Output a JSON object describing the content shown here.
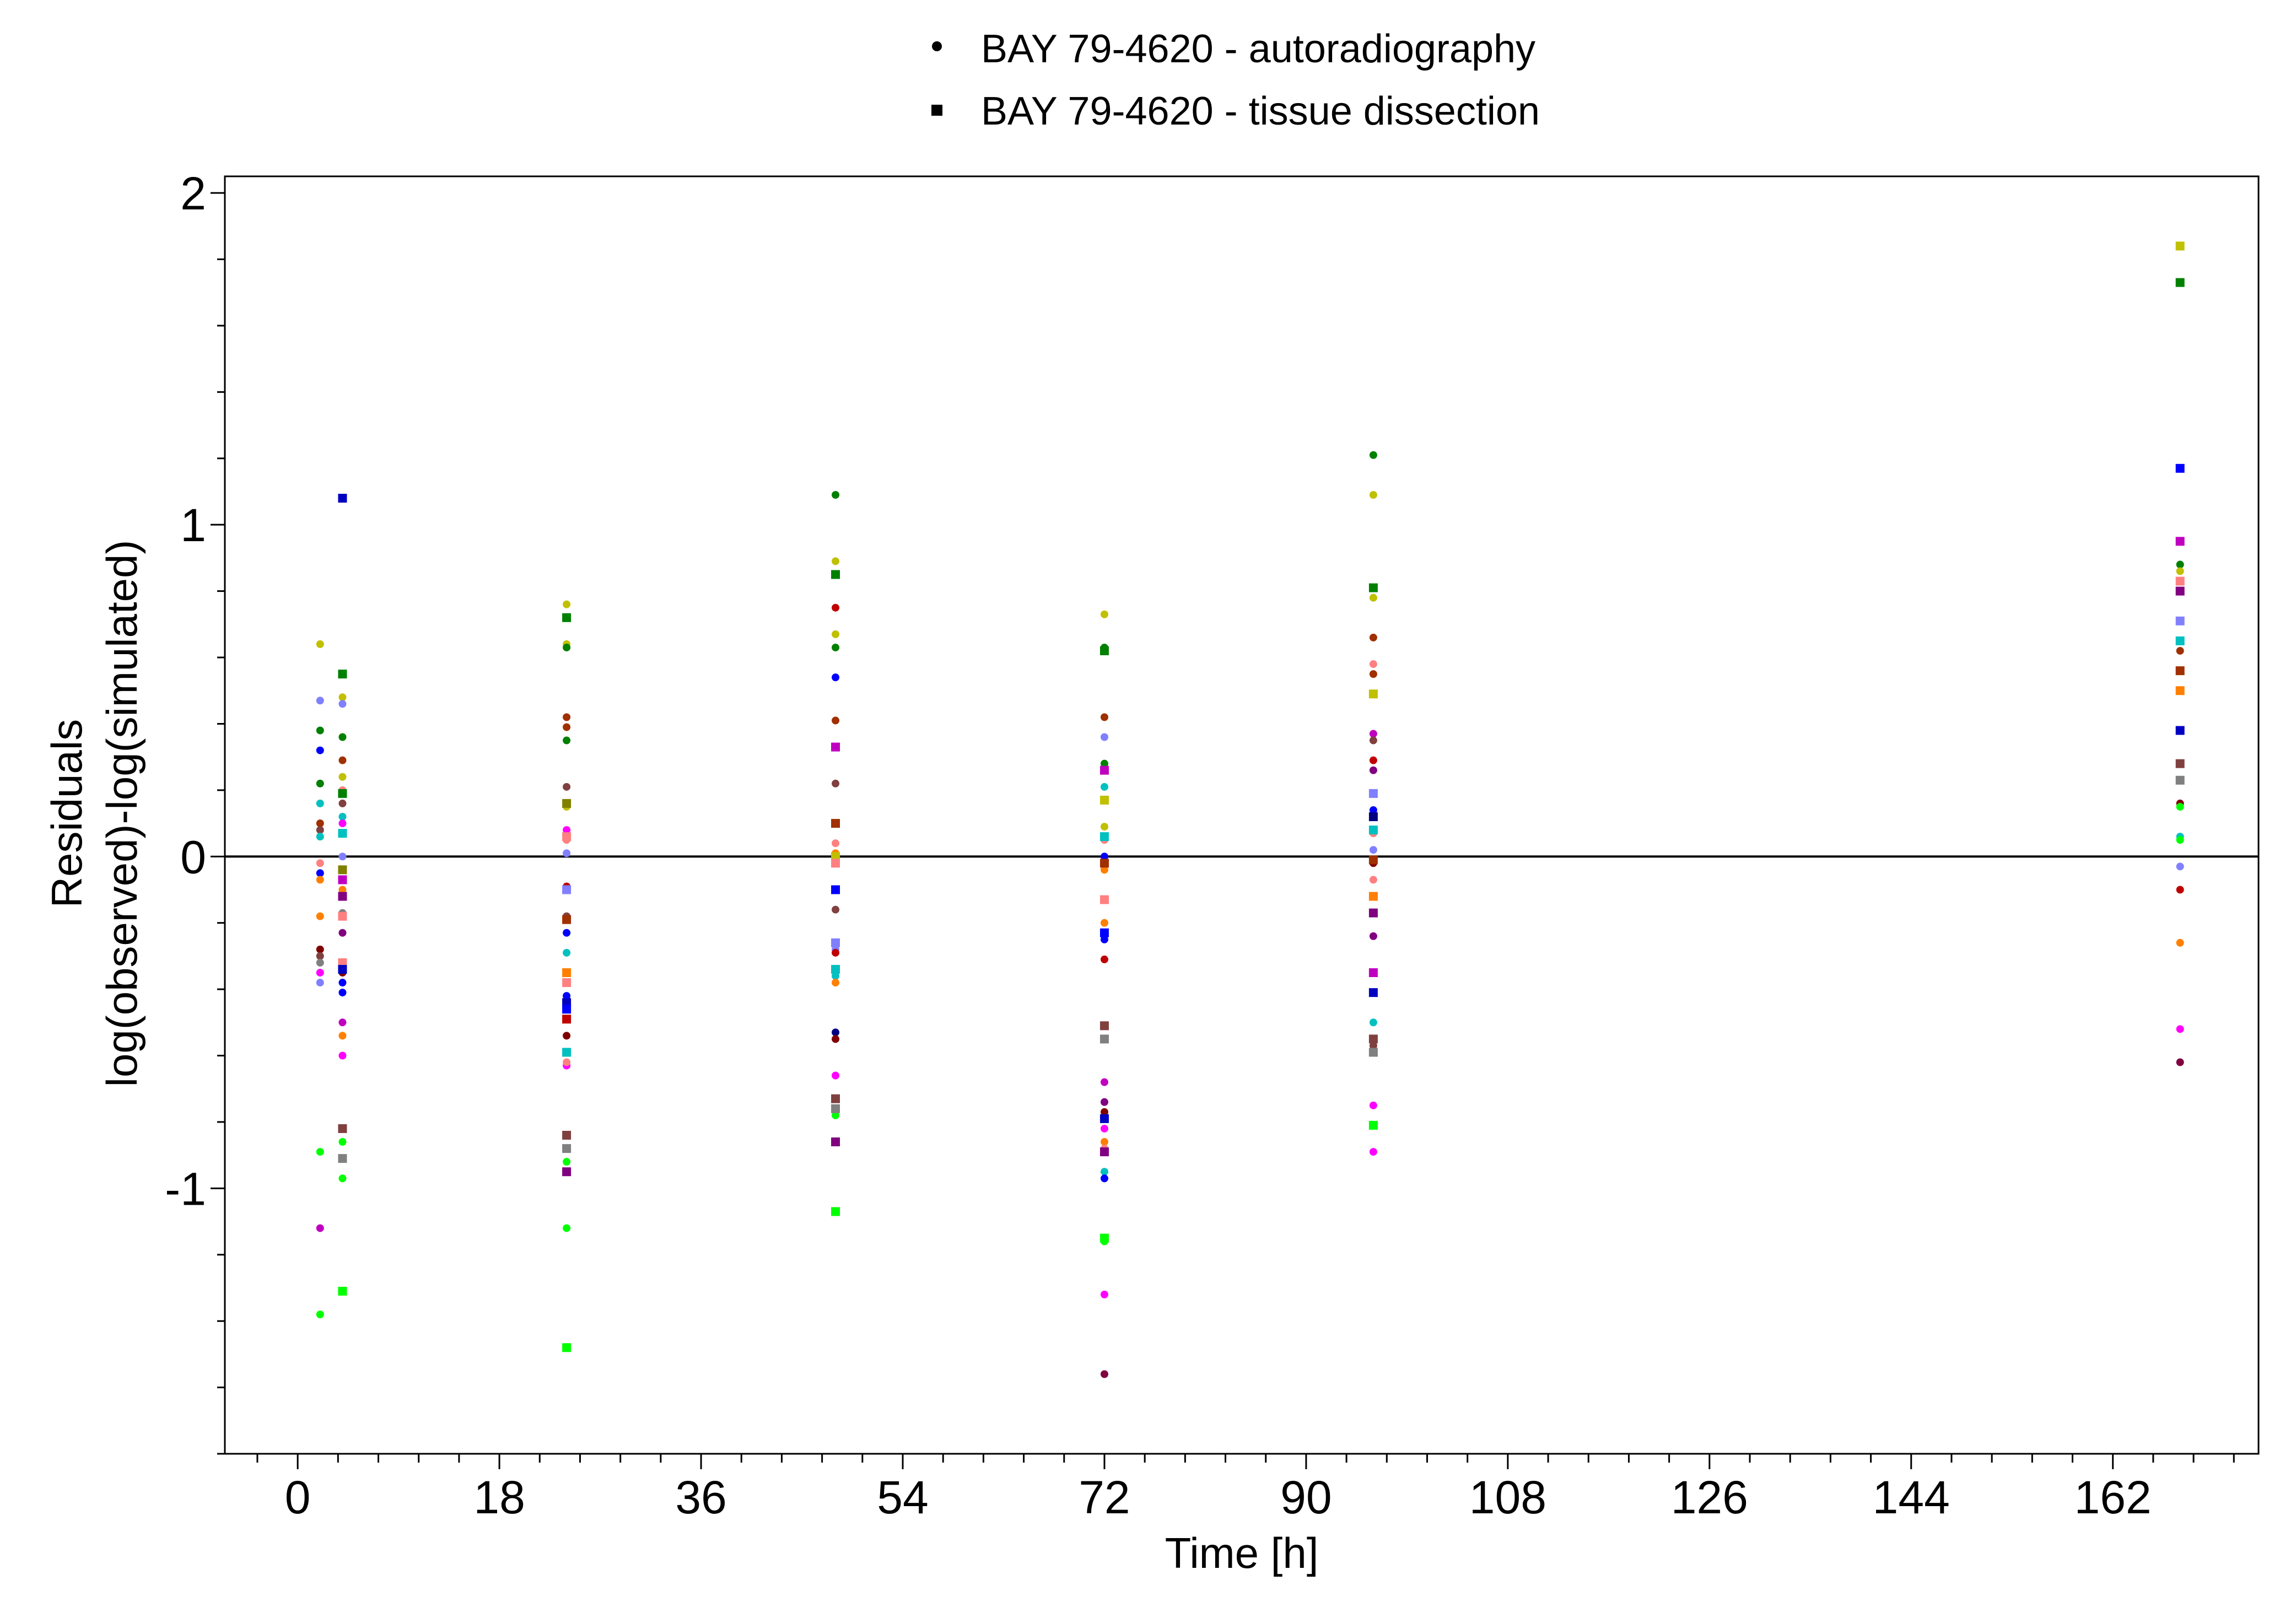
{
  "chart_data": {
    "type": "scatter",
    "title": "",
    "xlabel": "Time [h]",
    "ylabel_line1": "Residuals",
    "ylabel_line2": "log(observed)-log(simulated)",
    "xlim": [
      -6.5,
      175
    ],
    "ylim": [
      -1.8,
      2.05
    ],
    "xticks": [
      0,
      18,
      36,
      54,
      72,
      90,
      108,
      126,
      144,
      162
    ],
    "yticks": [
      -1,
      0,
      1,
      2
    ],
    "x_minor_step": 3.6,
    "y_minor_step": 0.2,
    "zero_line": 0,
    "grid": false,
    "legend_position": "top-center",
    "legend": [
      {
        "label": "BAY 79-4620 - autoradiography",
        "marker": "circle"
      },
      {
        "label": "BAY 79-4620 - tissue dissection",
        "marker": "square"
      }
    ],
    "series": [
      {
        "marker": "circle",
        "x": 2,
        "values": [
          [
            0.64,
            "#C0C000"
          ],
          [
            0.47,
            "#8080FF"
          ],
          [
            0.38,
            "#008000"
          ],
          [
            0.32,
            "#0000FF"
          ],
          [
            0.22,
            "#008000"
          ],
          [
            0.16,
            "#00C0C0"
          ],
          [
            0.1,
            "#A03000"
          ],
          [
            0.08,
            "#804040"
          ],
          [
            0.06,
            "#00C0C0"
          ],
          [
            -0.02,
            "#FF8080"
          ],
          [
            -0.05,
            "#0000FF"
          ],
          [
            -0.07,
            "#FF8000"
          ],
          [
            -0.18,
            "#FF8000"
          ],
          [
            -0.28,
            "#800000"
          ],
          [
            -0.3,
            "#804040"
          ],
          [
            -0.32,
            "#808080"
          ],
          [
            -0.35,
            "#FF00FF"
          ],
          [
            -0.38,
            "#8080FF"
          ],
          [
            -0.89,
            "#00FF00"
          ],
          [
            -1.12,
            "#C000C0"
          ],
          [
            -1.38,
            "#00FF00"
          ]
        ]
      },
      {
        "marker": "circle",
        "x": 4,
        "values": [
          [
            0.48,
            "#C0C000"
          ],
          [
            0.46,
            "#8080FF"
          ],
          [
            0.36,
            "#008000"
          ],
          [
            0.29,
            "#A03000"
          ],
          [
            0.24,
            "#C0C000"
          ],
          [
            0.2,
            "#FF8080"
          ],
          [
            0.16,
            "#804040"
          ],
          [
            0.12,
            "#00C0C0"
          ],
          [
            0.1,
            "#FF00FF"
          ],
          [
            0.0,
            "#8080FF"
          ],
          [
            -0.1,
            "#FF8000"
          ],
          [
            -0.17,
            "#808080"
          ],
          [
            -0.23,
            "#800080"
          ],
          [
            -0.35,
            "#800000"
          ],
          [
            -0.38,
            "#0000FF"
          ],
          [
            -0.41,
            "#0000FF"
          ],
          [
            -0.5,
            "#C000C0"
          ],
          [
            -0.54,
            "#FF8000"
          ],
          [
            -0.6,
            "#FF00FF"
          ],
          [
            -0.86,
            "#00FF00"
          ],
          [
            -0.97,
            "#00FF00"
          ]
        ]
      },
      {
        "marker": "square",
        "x": 4,
        "values": [
          [
            1.08,
            "#0000C0"
          ],
          [
            0.55,
            "#008000"
          ],
          [
            0.19,
            "#008000"
          ],
          [
            0.07,
            "#00C0C0"
          ],
          [
            -0.04,
            "#808000"
          ],
          [
            -0.07,
            "#C000C0"
          ],
          [
            -0.12,
            "#800080"
          ],
          [
            -0.18,
            "#FF8080"
          ],
          [
            -0.32,
            "#FF8080"
          ],
          [
            -0.34,
            "#0000C0"
          ],
          [
            -0.82,
            "#804040"
          ],
          [
            -0.91,
            "#808080"
          ],
          [
            -1.31,
            "#00FF00"
          ]
        ]
      },
      {
        "marker": "circle",
        "x": 24,
        "values": [
          [
            0.76,
            "#C0C000"
          ],
          [
            0.64,
            "#C0C000"
          ],
          [
            0.63,
            "#008000"
          ],
          [
            0.42,
            "#A03000"
          ],
          [
            0.39,
            "#A03000"
          ],
          [
            0.35,
            "#008000"
          ],
          [
            0.21,
            "#804040"
          ],
          [
            0.15,
            "#C0C000"
          ],
          [
            0.08,
            "#FF00FF"
          ],
          [
            0.05,
            "#FF8080"
          ],
          [
            0.01,
            "#8080FF"
          ],
          [
            -0.09,
            "#C00000"
          ],
          [
            -0.18,
            "#804040"
          ],
          [
            -0.23,
            "#0000FF"
          ],
          [
            -0.29,
            "#00C0C0"
          ],
          [
            -0.42,
            "#0000FF"
          ],
          [
            -0.54,
            "#800000"
          ],
          [
            -0.63,
            "#FF00FF"
          ],
          [
            -0.62,
            "#FF8080"
          ],
          [
            -0.92,
            "#00FF00"
          ],
          [
            -1.12,
            "#00FF00"
          ]
        ]
      },
      {
        "marker": "square",
        "x": 24,
        "values": [
          [
            0.72,
            "#008000"
          ],
          [
            0.16,
            "#808000"
          ],
          [
            0.06,
            "#FF8080"
          ],
          [
            -0.1,
            "#8080FF"
          ],
          [
            -0.19,
            "#A03000"
          ],
          [
            -0.35,
            "#FF8000"
          ],
          [
            -0.38,
            "#FF8080"
          ],
          [
            -0.44,
            "#0000C0"
          ],
          [
            -0.46,
            "#0000FF"
          ],
          [
            -0.49,
            "#C00000"
          ],
          [
            -0.59,
            "#00C0C0"
          ],
          [
            -0.84,
            "#804040"
          ],
          [
            -0.88,
            "#808080"
          ],
          [
            -0.95,
            "#800080"
          ],
          [
            -1.48,
            "#00FF00"
          ]
        ]
      },
      {
        "marker": "circle",
        "x": 48,
        "values": [
          [
            1.09,
            "#008000"
          ],
          [
            0.89,
            "#C0C000"
          ],
          [
            0.75,
            "#C00000"
          ],
          [
            0.67,
            "#C0C000"
          ],
          [
            0.63,
            "#008000"
          ],
          [
            0.54,
            "#0000FF"
          ],
          [
            0.41,
            "#A03000"
          ],
          [
            0.33,
            "#C000C0"
          ],
          [
            0.22,
            "#804040"
          ],
          [
            0.04,
            "#FF8080"
          ],
          [
            0.01,
            "#FF8000"
          ],
          [
            -0.16,
            "#804040"
          ],
          [
            -0.28,
            "#8080FF"
          ],
          [
            -0.29,
            "#C00000"
          ],
          [
            -0.36,
            "#00C0C0"
          ],
          [
            -0.38,
            "#FF8000"
          ],
          [
            -0.53,
            "#000080"
          ],
          [
            -0.55,
            "#800000"
          ],
          [
            -0.66,
            "#FF00FF"
          ],
          [
            -0.78,
            "#00FF00"
          ]
        ]
      },
      {
        "marker": "square",
        "x": 48,
        "values": [
          [
            0.85,
            "#008000"
          ],
          [
            0.33,
            "#C000C0"
          ],
          [
            0.1,
            "#A03000"
          ],
          [
            0.0,
            "#C0C000"
          ],
          [
            -0.02,
            "#FF8080"
          ],
          [
            -0.1,
            "#0000FF"
          ],
          [
            -0.26,
            "#8080FF"
          ],
          [
            -0.34,
            "#00C0C0"
          ],
          [
            -0.73,
            "#804040"
          ],
          [
            -0.76,
            "#808080"
          ],
          [
            -0.86,
            "#800080"
          ],
          [
            -1.07,
            "#00FF00"
          ]
        ]
      },
      {
        "marker": "circle",
        "x": 72,
        "values": [
          [
            0.73,
            "#C0C000"
          ],
          [
            0.63,
            "#008000"
          ],
          [
            0.42,
            "#A03000"
          ],
          [
            0.36,
            "#8080FF"
          ],
          [
            0.28,
            "#008000"
          ],
          [
            0.26,
            "#C000C0"
          ],
          [
            0.21,
            "#00C0C0"
          ],
          [
            0.09,
            "#C0C000"
          ],
          [
            0.05,
            "#FF8080"
          ],
          [
            0.0,
            "#0000FF"
          ],
          [
            -0.04,
            "#FF8000"
          ],
          [
            -0.2,
            "#FF8000"
          ],
          [
            -0.25,
            "#0000FF"
          ],
          [
            -0.31,
            "#C00000"
          ],
          [
            -0.68,
            "#C000C0"
          ],
          [
            -0.74,
            "#800080"
          ],
          [
            -0.77,
            "#800000"
          ],
          [
            -0.82,
            "#FF00FF"
          ],
          [
            -0.86,
            "#FF8000"
          ],
          [
            -0.88,
            "#FF8080"
          ],
          [
            -0.95,
            "#00C0C0"
          ],
          [
            -0.97,
            "#0000FF"
          ],
          [
            -1.16,
            "#00FF00"
          ],
          [
            -1.32,
            "#FF00FF"
          ],
          [
            -1.56,
            "#800040"
          ]
        ]
      },
      {
        "marker": "square",
        "x": 72,
        "values": [
          [
            0.62,
            "#008000"
          ],
          [
            0.26,
            "#C000C0"
          ],
          [
            0.17,
            "#C0C000"
          ],
          [
            0.06,
            "#00C0C0"
          ],
          [
            -0.02,
            "#A03000"
          ],
          [
            -0.13,
            "#FF8080"
          ],
          [
            -0.23,
            "#0000FF"
          ],
          [
            -0.51,
            "#804040"
          ],
          [
            -0.55,
            "#808080"
          ],
          [
            -0.79,
            "#0000C0"
          ],
          [
            -0.89,
            "#800080"
          ],
          [
            -1.15,
            "#00FF00"
          ]
        ]
      },
      {
        "marker": "circle",
        "x": 96,
        "values": [
          [
            1.21,
            "#008000"
          ],
          [
            1.09,
            "#C0C000"
          ],
          [
            0.78,
            "#C0C000"
          ],
          [
            0.66,
            "#A03000"
          ],
          [
            0.58,
            "#FF8080"
          ],
          [
            0.55,
            "#A03000"
          ],
          [
            0.37,
            "#C000C0"
          ],
          [
            0.35,
            "#804040"
          ],
          [
            0.29,
            "#C00000"
          ],
          [
            0.26,
            "#800080"
          ],
          [
            0.14,
            "#0000FF"
          ],
          [
            0.07,
            "#FF8080"
          ],
          [
            0.02,
            "#8080FF"
          ],
          [
            -0.02,
            "#800000"
          ],
          [
            -0.07,
            "#FF8080"
          ],
          [
            -0.24,
            "#800080"
          ],
          [
            -0.5,
            "#00C0C0"
          ],
          [
            -0.57,
            "#804040"
          ],
          [
            -0.75,
            "#FF00FF"
          ],
          [
            -0.89,
            "#FF00FF"
          ]
        ]
      },
      {
        "marker": "square",
        "x": 96,
        "values": [
          [
            0.81,
            "#008000"
          ],
          [
            0.49,
            "#C0C000"
          ],
          [
            0.19,
            "#8080FF"
          ],
          [
            0.12,
            "#000080"
          ],
          [
            0.08,
            "#00C0C0"
          ],
          [
            -0.01,
            "#A03000"
          ],
          [
            -0.12,
            "#FF8000"
          ],
          [
            -0.17,
            "#800080"
          ],
          [
            -0.35,
            "#C000C0"
          ],
          [
            -0.41,
            "#0000C0"
          ],
          [
            -0.55,
            "#804040"
          ],
          [
            -0.59,
            "#808080"
          ],
          [
            -0.81,
            "#00FF00"
          ]
        ]
      },
      {
        "marker": "circle",
        "x": 168,
        "values": [
          [
            0.88,
            "#008000"
          ],
          [
            0.86,
            "#C0C000"
          ],
          [
            0.62,
            "#A03000"
          ],
          [
            0.28,
            "#804040"
          ],
          [
            0.16,
            "#800000"
          ],
          [
            0.15,
            "#00FF00"
          ],
          [
            0.06,
            "#00C0C0"
          ],
          [
            0.05,
            "#00FF00"
          ],
          [
            -0.03,
            "#8080FF"
          ],
          [
            -0.1,
            "#C00000"
          ],
          [
            -0.26,
            "#FF8000"
          ],
          [
            -0.52,
            "#FF00FF"
          ],
          [
            -0.62,
            "#800040"
          ]
        ]
      },
      {
        "marker": "square",
        "x": 168,
        "values": [
          [
            1.84,
            "#C0C000"
          ],
          [
            1.73,
            "#008000"
          ],
          [
            1.17,
            "#0000FF"
          ],
          [
            0.95,
            "#C000C0"
          ],
          [
            0.83,
            "#FF8080"
          ],
          [
            0.8,
            "#800080"
          ],
          [
            0.71,
            "#8080FF"
          ],
          [
            0.65,
            "#00C0C0"
          ],
          [
            0.56,
            "#A03000"
          ],
          [
            0.5,
            "#FF8000"
          ],
          [
            0.38,
            "#0000C0"
          ],
          [
            0.28,
            "#804040"
          ],
          [
            0.23,
            "#808080"
          ]
        ]
      }
    ]
  }
}
